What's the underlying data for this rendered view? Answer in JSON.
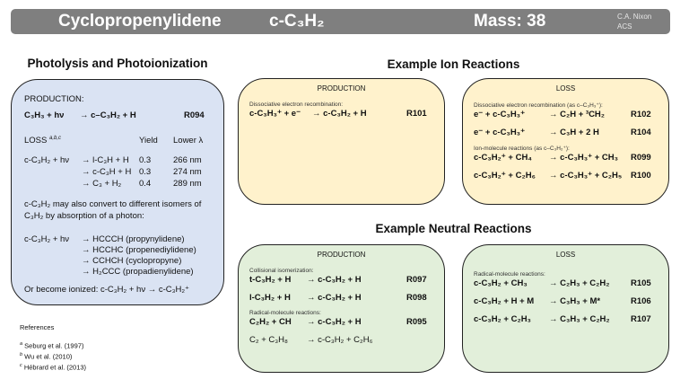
{
  "header": {
    "name": "Cyclopropenylidene",
    "formula": "c-C₃H₂",
    "mass": "Mass: 38",
    "author": "C.A. Nixon",
    "affiliation": "ACS",
    "color": "#7f7f7f"
  },
  "photo": {
    "title": "Photolysis and Photoionization",
    "production_label": "PRODUCTION:",
    "production": {
      "left": "C₃H₃ + hν",
      "right": "→ c–C₃H₂ + H",
      "id": "R094"
    },
    "loss_label": "LOSS",
    "loss_refs": "a,b,c",
    "yield_header": "Yield",
    "lambda_header": "Lower λ",
    "loss": [
      {
        "left": "c-C₃H₂ + hν",
        "right": "→ l-C₃H + H",
        "yield": "0.3",
        "lambda": "266 nm"
      },
      {
        "left": "",
        "right": "→ c-C₃H + H",
        "yield": "0.3",
        "lambda": "274 nm"
      },
      {
        "left": "",
        "right": "→ C₃     + H₂",
        "yield": "0.4",
        "lambda": "289 nm"
      }
    ],
    "isomer_text": "c-C₃H₂ may also convert to different isomers of C₃H₂ by absorption of a photon:",
    "isomers": [
      {
        "left": "c-C₃H₂ + hν",
        "right": "→ HCCCH (propynylidene)"
      },
      {
        "left": "",
        "right": "→ HCCHC  (propenediylidene)"
      },
      {
        "left": "",
        "right": "→ CCHCH  (cyclopropyne)"
      },
      {
        "left": "",
        "right": "→ H₂CCC  (propadienylidene)"
      }
    ],
    "ionized": "Or become ionized:   c-C₃H₂ + hν → c-C₃H₂⁺"
  },
  "references": {
    "title": "References",
    "items": [
      {
        "mark": "a",
        "text": "Seburg et al. (1997)"
      },
      {
        "mark": "b",
        "text": "Wu et al. (2010)"
      },
      {
        "mark": "c",
        "text": "Hébrard et al. (2013)"
      }
    ]
  },
  "ion": {
    "title": "Example Ion Reactions",
    "production": {
      "title": "PRODUCTION",
      "groups": [
        {
          "note": "Dissociative electron recombination:",
          "reactions": [
            {
              "left": "c-C₃H₃⁺ + e⁻",
              "right": "→ c-C₃H₂ + H",
              "id": "R101"
            }
          ]
        }
      ]
    },
    "loss": {
      "title": "LOSS",
      "groups": [
        {
          "note": "Dissociative electron recombination (as c–C₃H₃⁺):",
          "reactions": [
            {
              "left": "e⁻ + c-C₃H₃⁺",
              "right": "→ C₂H + ³CH₂",
              "id": "R102"
            },
            {
              "left": "e⁻ + c-C₃H₃⁺",
              "right": "→ C₃H + 2 H",
              "id": "R104"
            }
          ]
        },
        {
          "note": "Ion-molecule reactions (as c–C₃H₂⁺):",
          "reactions": [
            {
              "left": "c-C₃H₂⁺ + CH₄",
              "right": "→ c-C₃H₃⁺ + CH₃",
              "id": "R099"
            },
            {
              "left": "c-C₃H₂⁺ + C₂H₆",
              "right": "→ c-C₃H₃⁺ + C₂H₅",
              "id": "R100"
            }
          ]
        }
      ]
    }
  },
  "neutral": {
    "title": "Example Neutral Reactions",
    "production": {
      "title": "PRODUCTION",
      "groups": [
        {
          "note": "Collisional isomerization:",
          "reactions": [
            {
              "left": "t-C₃H₂ + H",
              "right": "→ c-C₃H₂ + H",
              "id": "R097"
            },
            {
              "left": "l-C₃H₂ + H",
              "right": "→ c-C₃H₂ + H",
              "id": "R098"
            }
          ]
        },
        {
          "note": "Radical-molecule reactions:",
          "reactions": [
            {
              "left": "C₂H₂ + CH",
              "right": "→ c-C₃H₂ + H",
              "id": "R095"
            },
            {
              "left": "C₂ + C₃H₈",
              "right": "→ c-C₃H₂ + C₂H₆",
              "id": ""
            }
          ]
        }
      ]
    },
    "loss": {
      "title": "LOSS",
      "groups": [
        {
          "note": "Radical-molecule reactions:",
          "reactions": [
            {
              "left": "c-C₃H₂ + CH₃",
              "right": "→ C₂H₃ + C₂H₂",
              "id": "R105"
            },
            {
              "left": "c-C₃H₂ + H + M",
              "right": "→ C₃H₃ + M*",
              "id": "R106"
            },
            {
              "left": "c-C₃H₂ + C₂H₃",
              "right": "→ C₃H₃ + C₂H₂",
              "id": "R107"
            }
          ]
        }
      ]
    }
  },
  "colors": {
    "photo_box": "#dae3f3",
    "ion_box": "#fff2cc",
    "neutral_box": "#e2efda"
  }
}
